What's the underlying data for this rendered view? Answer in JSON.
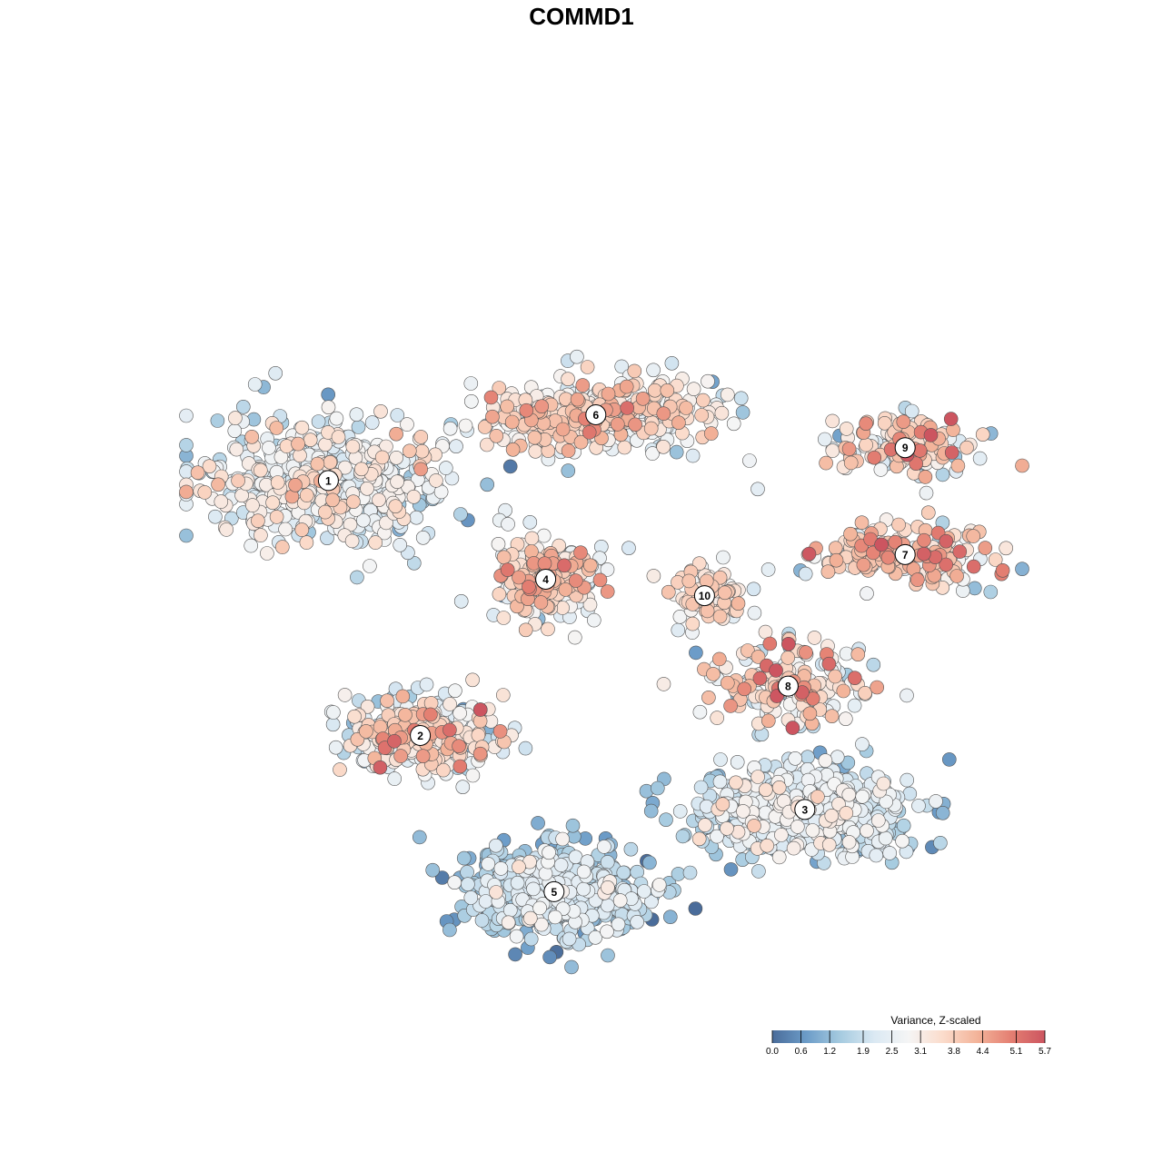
{
  "chart_data": {
    "type": "scatter",
    "title": "COMMD1",
    "xlabel": "",
    "ylabel": "",
    "grid": false,
    "axes_visible": false,
    "legend": {
      "title": "Variance, Z-scaled",
      "placement": "bottom-right",
      "type": "colorbar",
      "min": 0.0,
      "max": 5.7,
      "tick_labels": [
        "0.0",
        "0.6",
        "1.2",
        "1.9",
        "2.5",
        "3.1",
        "3.8",
        "4.4",
        "5.1",
        "5.7"
      ],
      "tick_values": [
        0.0,
        0.6,
        1.2,
        1.9,
        2.5,
        3.1,
        3.8,
        4.4,
        5.1,
        5.7
      ],
      "colors": [
        "#4a6c9a",
        "#6c9cc8",
        "#a6cbe0",
        "#dbe9f3",
        "#f5f5f5",
        "#fbdccc",
        "#f3b49a",
        "#e47f72",
        "#cc5560"
      ]
    },
    "clusters": [
      {
        "label": "1",
        "x": 0.17,
        "y": 0.62,
        "spread_x": 0.16,
        "spread_y": 0.09,
        "count": 520,
        "mean": 2.6,
        "sd": 0.7
      },
      {
        "label": "6",
        "x": 0.49,
        "y": 0.7,
        "spread_x": 0.15,
        "spread_y": 0.05,
        "count": 380,
        "mean": 3.3,
        "sd": 0.7
      },
      {
        "label": "9",
        "x": 0.86,
        "y": 0.66,
        "spread_x": 0.1,
        "spread_y": 0.04,
        "count": 140,
        "mean": 3.4,
        "sd": 1.0
      },
      {
        "label": "4",
        "x": 0.43,
        "y": 0.5,
        "spread_x": 0.07,
        "spread_y": 0.06,
        "count": 260,
        "mean": 3.2,
        "sd": 0.9
      },
      {
        "label": "10",
        "x": 0.62,
        "y": 0.48,
        "spread_x": 0.05,
        "spread_y": 0.04,
        "count": 70,
        "mean": 3.4,
        "sd": 0.5
      },
      {
        "label": "7",
        "x": 0.86,
        "y": 0.53,
        "spread_x": 0.12,
        "spread_y": 0.04,
        "count": 200,
        "mean": 3.6,
        "sd": 0.9
      },
      {
        "label": "8",
        "x": 0.72,
        "y": 0.37,
        "spread_x": 0.1,
        "spread_y": 0.06,
        "count": 190,
        "mean": 3.3,
        "sd": 1.0
      },
      {
        "label": "2",
        "x": 0.28,
        "y": 0.31,
        "spread_x": 0.11,
        "spread_y": 0.05,
        "count": 300,
        "mean": 2.9,
        "sd": 1.0
      },
      {
        "label": "3",
        "x": 0.74,
        "y": 0.22,
        "spread_x": 0.15,
        "spread_y": 0.06,
        "count": 520,
        "mean": 2.2,
        "sd": 0.6
      },
      {
        "label": "5",
        "x": 0.44,
        "y": 0.12,
        "spread_x": 0.12,
        "spread_y": 0.06,
        "count": 520,
        "mean": 1.8,
        "sd": 0.6
      }
    ]
  }
}
